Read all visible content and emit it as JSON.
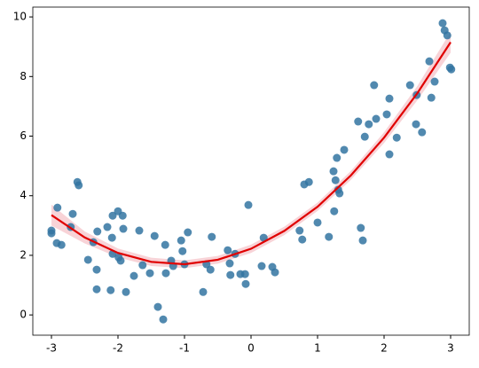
{
  "chart_data": {
    "type": "scatter",
    "x": [
      -3.0,
      -3.0,
      -2.91,
      -2.92,
      -2.85,
      -2.71,
      -2.68,
      -2.61,
      -2.59,
      -2.45,
      -2.37,
      -2.32,
      -2.32,
      -2.31,
      -2.16,
      -2.11,
      -2.08,
      -2.09,
      -2.08,
      -2.0,
      -1.99,
      -1.96,
      -1.93,
      -1.92,
      -1.88,
      -1.76,
      -1.68,
      -1.63,
      -1.52,
      -1.45,
      -1.4,
      -1.32,
      -1.29,
      -1.28,
      -1.2,
      -1.17,
      -1.05,
      -1.03,
      -1.0,
      -0.95,
      -0.72,
      -0.67,
      -0.61,
      -0.59,
      -0.35,
      -0.32,
      -0.31,
      -0.24,
      -0.16,
      -0.09,
      -0.08,
      -0.04,
      0.16,
      0.19,
      0.32,
      0.36,
      0.73,
      0.77,
      0.8,
      0.87,
      1.0,
      1.17,
      1.24,
      1.27,
      1.25,
      1.29,
      1.31,
      1.33,
      1.4,
      1.61,
      1.65,
      1.68,
      1.71,
      1.77,
      1.85,
      1.88,
      2.04,
      2.08,
      2.08,
      2.19,
      2.39,
      2.48,
      2.49,
      2.57,
      2.68,
      2.71,
      2.76,
      2.88,
      2.91,
      2.95,
      2.99,
      3.01
    ],
    "values": [
      2.83,
      2.74,
      3.6,
      2.41,
      2.35,
      2.95,
      3.39,
      4.46,
      4.35,
      1.85,
      2.44,
      1.52,
      0.86,
      2.8,
      2.95,
      0.83,
      3.33,
      2.59,
      2.05,
      3.48,
      1.93,
      1.82,
      3.33,
      2.89,
      0.77,
      1.31,
      2.83,
      1.67,
      1.4,
      2.65,
      0.27,
      -0.15,
      2.35,
      1.4,
      1.82,
      1.64,
      2.5,
      2.14,
      1.7,
      2.77,
      0.77,
      1.7,
      1.52,
      2.62,
      2.17,
      1.73,
      1.34,
      2.05,
      1.37,
      1.37,
      1.04,
      3.69,
      1.64,
      2.59,
      1.61,
      1.43,
      2.83,
      2.53,
      4.38,
      4.46,
      3.1,
      2.62,
      4.82,
      4.52,
      3.48,
      5.27,
      4.2,
      4.08,
      5.54,
      6.49,
      2.92,
      2.5,
      5.98,
      6.4,
      7.71,
      6.58,
      6.73,
      7.26,
      5.39,
      5.95,
      7.71,
      6.4,
      7.38,
      6.13,
      8.51,
      7.29,
      7.83,
      9.79,
      9.55,
      9.38,
      8.3,
      8.24
    ],
    "color": "#3274a1",
    "fit": {
      "x": [
        -3,
        -2.5,
        -2,
        -1.5,
        -1,
        -0.5,
        0,
        0.5,
        1,
        1.5,
        2,
        2.5,
        3
      ],
      "values": [
        3.35,
        2.6,
        2.08,
        1.78,
        1.7,
        1.85,
        2.22,
        2.82,
        3.63,
        4.68,
        5.95,
        7.44,
        9.15
      ],
      "lower": [
        3.0,
        2.4,
        1.93,
        1.64,
        1.57,
        1.72,
        2.08,
        2.68,
        3.49,
        4.53,
        5.77,
        7.2,
        8.8
      ],
      "upper": [
        3.7,
        2.8,
        2.23,
        1.92,
        1.83,
        1.98,
        2.36,
        2.96,
        3.77,
        4.83,
        6.13,
        7.68,
        9.5
      ],
      "color": "#e00000",
      "band_color": "#f4b6bd"
    },
    "xlim": [
      -3.28,
      3.28
    ],
    "ylim": [
      -0.68,
      10.33
    ],
    "xticks": [
      -3,
      -2,
      -1,
      0,
      1,
      2,
      3
    ],
    "yticks": [
      0,
      2,
      4,
      6,
      8,
      10
    ]
  }
}
